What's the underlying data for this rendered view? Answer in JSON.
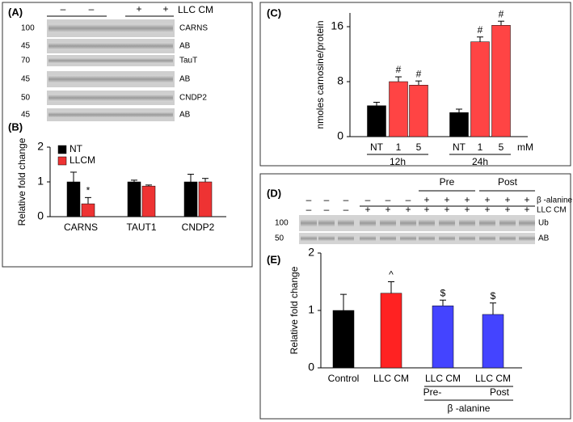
{
  "panels": {
    "A": {
      "label": "(A)",
      "signs": [
        "–",
        "–",
        "+",
        "+"
      ],
      "treatment": "LLC CM",
      "bands": [
        {
          "mw": 100,
          "name": "CARNS"
        },
        {
          "mw": 45,
          "name": "AB"
        },
        {
          "mw": 70,
          "name": "TauT"
        },
        {
          "mw": 45,
          "name": "AB"
        },
        {
          "mw": 50,
          "name": "CNDP2"
        },
        {
          "mw": 45,
          "name": "AB"
        }
      ]
    },
    "B": {
      "label": "(B)"
    },
    "C": {
      "label": "(C)"
    },
    "D": {
      "label": "(D)",
      "pre": "Pre",
      "post": "Post",
      "row1": "β -alanine",
      "row2": "LLC CM",
      "row1_signs": [
        "–",
        "–",
        "–",
        "–",
        "–",
        "–",
        "+",
        "+",
        "+",
        "+",
        "+",
        "+"
      ],
      "row2_signs": [
        "–",
        "–",
        "–",
        "+",
        "+",
        "+",
        "+",
        "+",
        "+",
        "+",
        "+",
        "+"
      ],
      "bands": [
        {
          "mw": 100,
          "name": "Ub"
        },
        {
          "mw": 50,
          "name": "AB"
        }
      ]
    },
    "E": {
      "label": "(E)"
    }
  },
  "chart_data": [
    {
      "type": "bar",
      "ylabel": "Relative fold change",
      "categories": [
        "CARNS",
        "TAUT1",
        "CNDP2"
      ],
      "series": [
        {
          "name": "NT",
          "color": "#000000",
          "values": [
            1.0,
            1.0,
            1.0
          ],
          "errors": [
            0.28,
            0.05,
            0.22
          ],
          "annotations": [
            null,
            null,
            null
          ]
        },
        {
          "name": "LLCM",
          "color": "#ee3333",
          "values": [
            0.37,
            0.88,
            1.0
          ],
          "errors": [
            0.18,
            0.03,
            0.1
          ],
          "annotations": [
            "*",
            null,
            null
          ]
        }
      ],
      "ylim": [
        0,
        2
      ],
      "yticks": [
        0,
        1,
        2
      ],
      "legend": "upper left"
    },
    {
      "type": "bar",
      "ylabel": "nmoles carnosine/protein",
      "categories": [
        "NT",
        "1",
        "5",
        "NT",
        "1",
        "5"
      ],
      "values": [
        4.5,
        8.0,
        7.5,
        3.5,
        13.8,
        16.2
      ],
      "errors": [
        0.5,
        0.7,
        0.6,
        0.5,
        0.7,
        0.6
      ],
      "colors": [
        "#000000",
        "#ff4444",
        "#ff4444",
        "#000000",
        "#ff4444",
        "#ff4444"
      ],
      "annotations": [
        null,
        "#",
        "#",
        null,
        "#",
        "#"
      ],
      "groups": [
        "12h",
        "24h"
      ],
      "unit": "mM",
      "ylim": [
        0,
        18
      ],
      "yticks": [
        0,
        8,
        16
      ]
    },
    {
      "type": "bar",
      "ylabel": "Relative fold change",
      "categories": [
        "Control",
        "LLC CM",
        "LLC CM",
        "LLC CM"
      ],
      "values": [
        1.0,
        1.3,
        1.08,
        0.93
      ],
      "errors": [
        0.28,
        0.2,
        0.1,
        0.2
      ],
      "colors": [
        "#000000",
        "#ff2222",
        "#4444ff",
        "#4444ff"
      ],
      "annotations": [
        null,
        "^",
        "$",
        "$"
      ],
      "groups": [
        "Pre-",
        "Post"
      ],
      "xlabel": "β -alanine",
      "ylim": [
        0,
        2
      ],
      "yticks": [
        0,
        1,
        2
      ]
    }
  ]
}
